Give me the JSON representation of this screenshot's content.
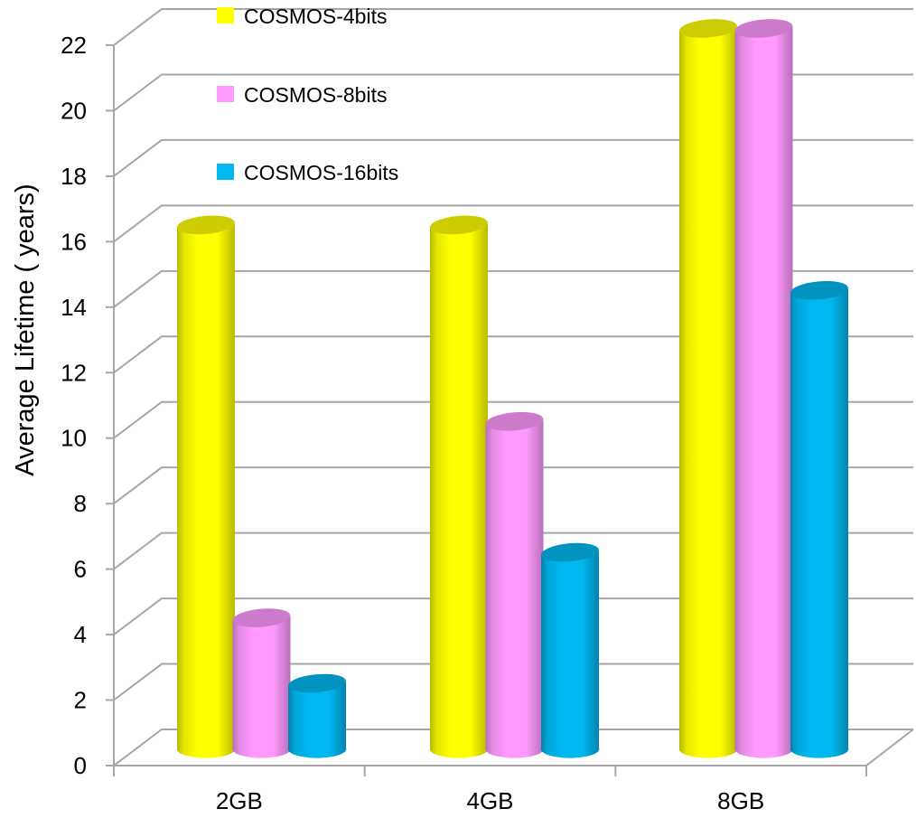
{
  "chart_data": {
    "type": "bar",
    "style": "3d-cylinder-clustered",
    "title": "",
    "xlabel": "",
    "ylabel": "Average Lifetime ( years)",
    "ylim": [
      0,
      22
    ],
    "yticks": [
      0,
      2,
      4,
      6,
      8,
      10,
      12,
      14,
      16,
      18,
      20,
      22
    ],
    "grid": true,
    "legend_position": "top-inside",
    "categories": [
      "2GB",
      "4GB",
      "8GB"
    ],
    "series": [
      {
        "name": "COSMOS-4bits",
        "color": "#ffff00",
        "values": [
          16,
          16,
          22
        ]
      },
      {
        "name": "COSMOS-8bits",
        "color": "#ff99ff",
        "values": [
          4,
          10,
          22
        ]
      },
      {
        "name": "COSMOS-16bits",
        "color": "#00b8f0",
        "values": [
          2,
          6,
          14
        ]
      }
    ]
  }
}
